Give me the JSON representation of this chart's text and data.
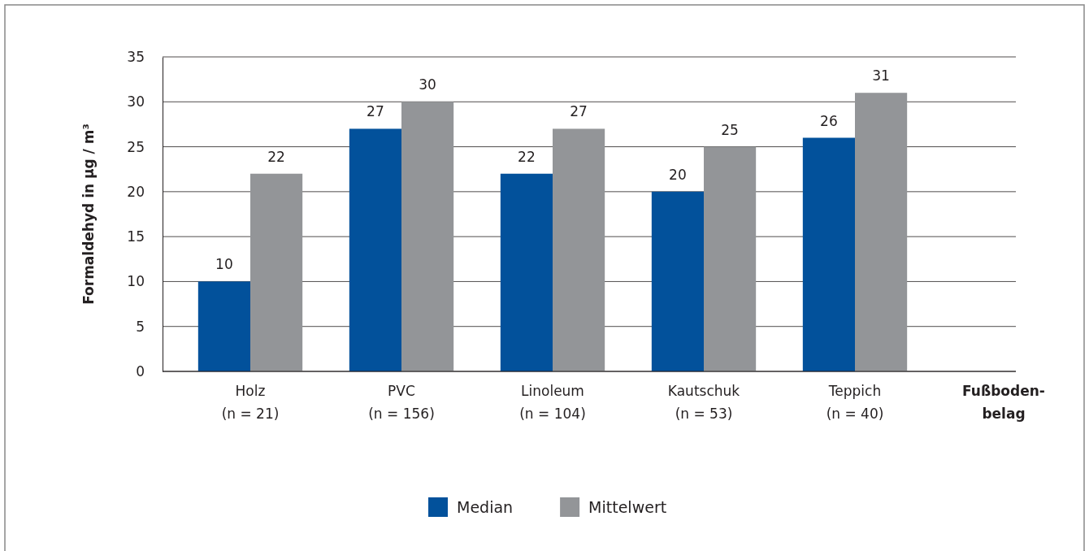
{
  "chart_data": {
    "type": "bar",
    "categories": [
      "Holz\n(n = 21)",
      "PVC\n(n = 156)",
      "Linoleum\n(n = 104)",
      "Kautschuk\n(n = 53)",
      "Teppich\n(n = 40)"
    ],
    "series": [
      {
        "name": "Median",
        "color": "#02519b",
        "values": [
          10,
          27,
          22,
          20,
          26
        ]
      },
      {
        "name": "Mittelwert",
        "color": "#939598",
        "values": [
          22,
          30,
          27,
          25,
          31
        ]
      }
    ],
    "xlabel": "Fußboden-belag",
    "ylabel": "Formaldehyd in µg / m³",
    "ylim": [
      0,
      35
    ],
    "yticks": [
      0,
      5,
      10,
      15,
      20,
      25,
      30,
      35
    ],
    "grid": "y",
    "legend": "bottom",
    "data_labels": true
  }
}
